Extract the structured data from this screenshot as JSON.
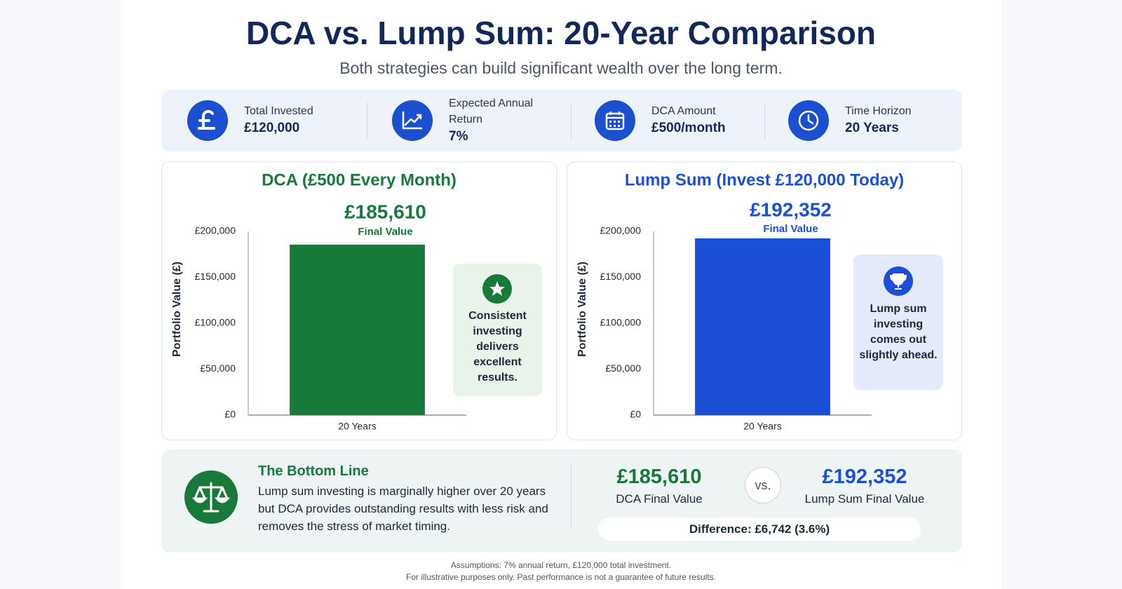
{
  "header": {
    "title": "DCA vs. Lump Sum: 20-Year Comparison",
    "subtitle": "Both strategies can build significant wealth over the long term."
  },
  "stats": [
    {
      "label": "Total Invested",
      "value": "£120,000"
    },
    {
      "label": "Expected Annual Return",
      "value": "7%"
    },
    {
      "label": "DCA Amount",
      "value": "£500/month"
    },
    {
      "label": "Time Horizon",
      "value": "20 Years"
    }
  ],
  "chart_data": [
    {
      "type": "bar",
      "title": "DCA (£500 Every Month)",
      "categories": [
        "20 Years"
      ],
      "values": [
        185610
      ],
      "value_labels": [
        "£185,610"
      ],
      "value_caption": "Final Value",
      "ylabel": "Portfolio Value (£)",
      "ylim": [
        0,
        200000
      ],
      "yticks": [
        {
          "value": 0,
          "label": "£0"
        },
        {
          "value": 50000,
          "label": "£50,000"
        },
        {
          "value": 100000,
          "label": "£100,000"
        },
        {
          "value": 150000,
          "label": "£150,000"
        },
        {
          "value": 200000,
          "label": "£200,000"
        }
      ],
      "color": "#17793a",
      "grid": false,
      "annotation": "Consistent investing delivers excellent results."
    },
    {
      "type": "bar",
      "title": "Lump Sum (Invest £120,000 Today)",
      "categories": [
        "20 Years"
      ],
      "values": [
        192352
      ],
      "value_labels": [
        "£192,352"
      ],
      "value_caption": "Final Value",
      "ylabel": "Portfolio Value (£)",
      "ylim": [
        0,
        200000
      ],
      "yticks": [
        {
          "value": 0,
          "label": "£0"
        },
        {
          "value": 50000,
          "label": "£50,000"
        },
        {
          "value": 100000,
          "label": "£100,000"
        },
        {
          "value": 150000,
          "label": "£150,000"
        },
        {
          "value": 200000,
          "label": "£200,000"
        }
      ],
      "color": "#1a4fd6",
      "grid": false,
      "annotation": "Lump sum investing comes out slightly ahead."
    }
  ],
  "bottom_line": {
    "title": "The Bottom Line",
    "text": "Lump sum investing is marginally higher over 20 years but DCA provides outstanding results with less risk and removes the stress of market timing.",
    "dca_value": "£185,610",
    "dca_label": "DCA Final Value",
    "vs": "vs.",
    "lump_value": "£192,352",
    "lump_label": "Lump Sum Final Value",
    "difference": "Difference: £6,742 (3.6%)"
  },
  "footer": [
    "Assumptions: 7% annual return, £120,000 total investment.",
    "For illustrative purposes only. Past performance is not a guarantee of future results."
  ]
}
